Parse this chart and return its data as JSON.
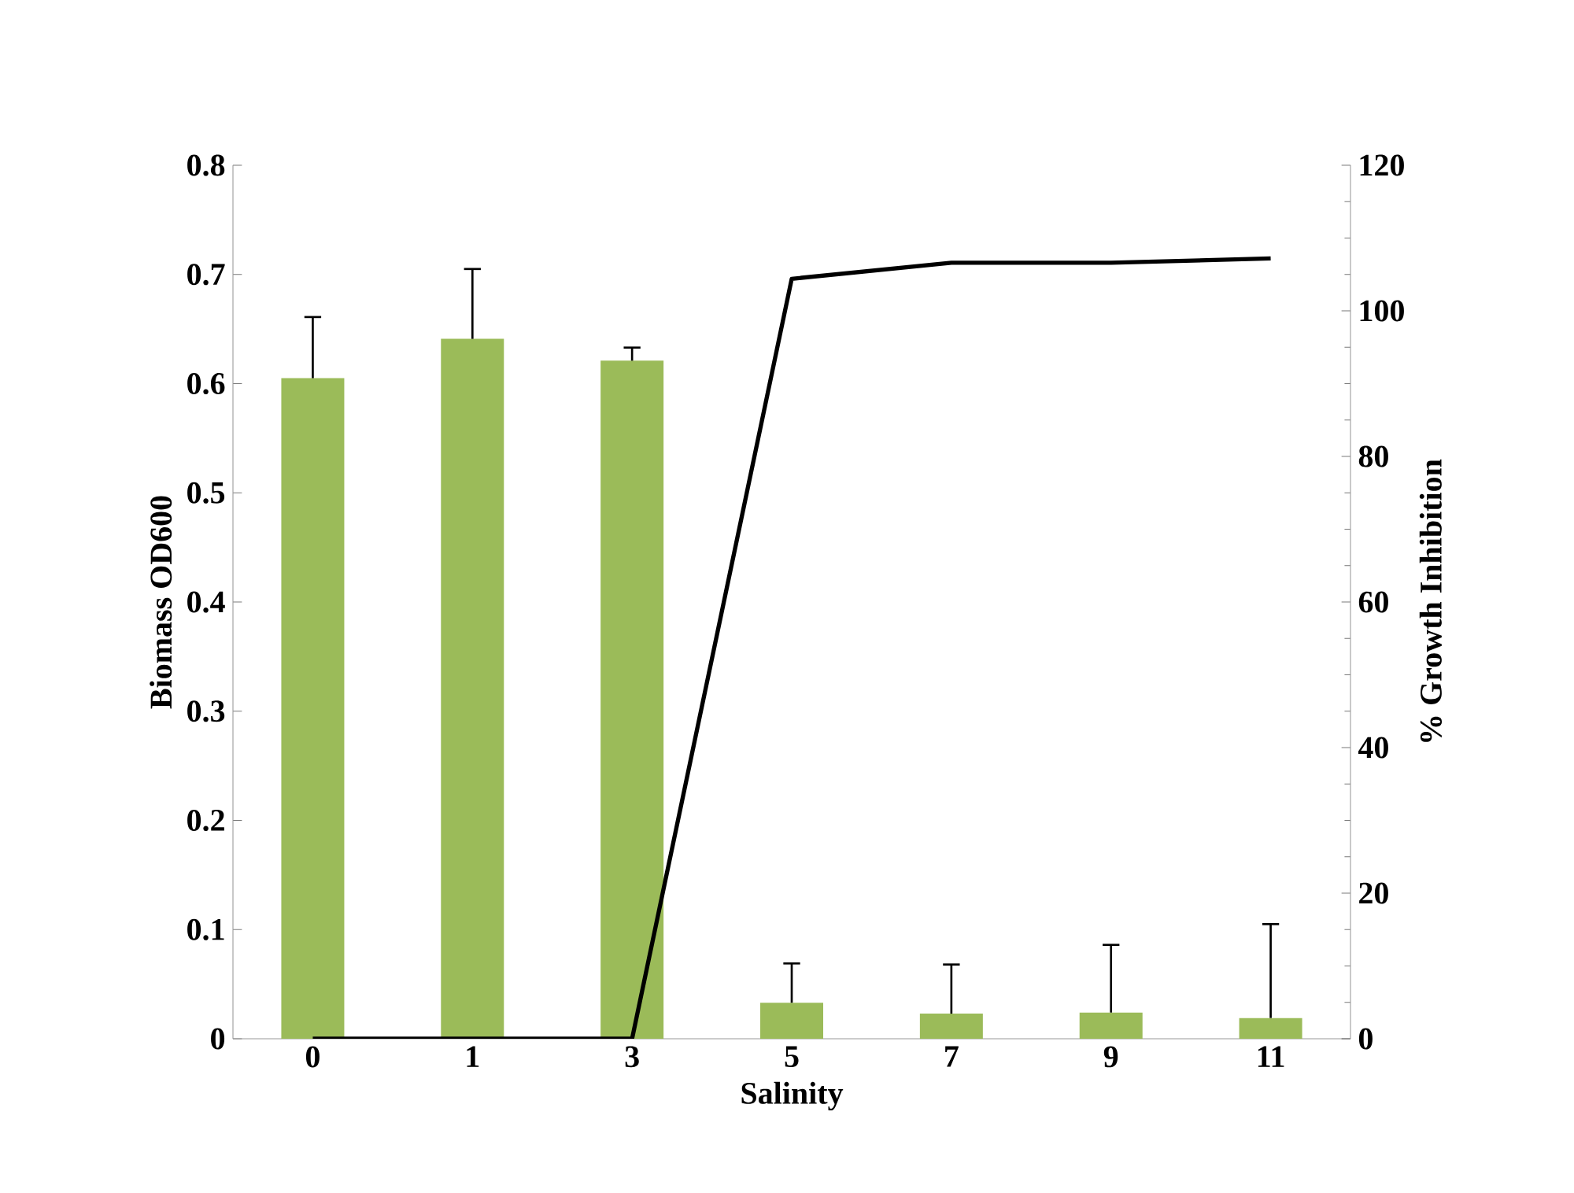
{
  "chart_data": {
    "type": "bar",
    "xlabel": "Salinity",
    "ylabel": "Biomass OD600",
    "y2label": "% Growth Inhibition",
    "categories": [
      "0",
      "1",
      "3",
      "5",
      "7",
      "9",
      "11"
    ],
    "series": [
      {
        "color": "#9bbb59",
        "values": [
          0.605,
          0.641,
          0.621,
          0.033,
          0.023,
          0.024,
          0.019
        ],
        "errors": [
          [
            0.605,
            0.661
          ],
          [
            0.641,
            0.705
          ],
          [
            0.621,
            0.633
          ],
          [
            0.033,
            0.069
          ],
          [
            0.023,
            0.068
          ],
          [
            0.024,
            0.086
          ],
          [
            0.019,
            0.105
          ]
        ]
      },
      {
        "type": "line",
        "axis": "y2",
        "color": "#000000",
        "values": [
          0,
          0,
          0,
          104.4,
          106.6,
          106.6,
          107.2
        ]
      }
    ],
    "ylim": [
      0,
      0.8
    ],
    "yticks": [
      0,
      0.1,
      0.2,
      0.3,
      0.4,
      0.5,
      0.6,
      0.7,
      0.8
    ],
    "y2lim": [
      0,
      120
    ],
    "y2ticks": [
      0,
      20,
      40,
      60,
      80,
      100,
      120
    ],
    "grid": false,
    "legend": false,
    "marker": "none",
    "line_style": "solid"
  }
}
